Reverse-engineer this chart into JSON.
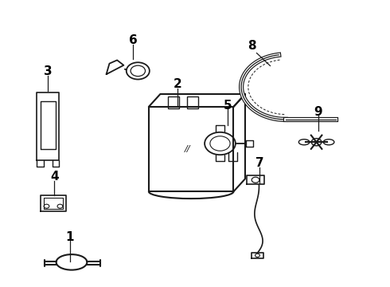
{
  "background_color": "#ffffff",
  "line_color": "#1a1a1a",
  "label_color": "#000000",
  "label_fontsize": 11,
  "label_fontweight": "bold",
  "fig_width": 4.9,
  "fig_height": 3.6,
  "dpi": 100
}
